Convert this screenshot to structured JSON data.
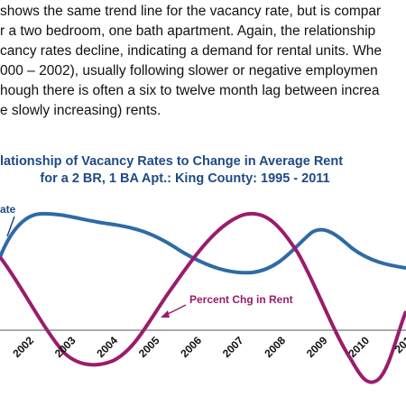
{
  "paragraph": {
    "lines": [
      "shows the same trend line for the vacancy rate, but is compar",
      "r a two bedroom, one bath apartment. Again, the relationship",
      "cancy rates decline, indicating a demand for rental units. Whe",
      "000 – 2002), usually following slower or negative  employmen",
      "hough there is often a six to twelve month lag between increa",
      "e slowly increasing) rents."
    ]
  },
  "figure": {
    "title_lines": [
      "lationship of Vacancy  Rates to Change in Average Rent",
      "for a 2 BR, 1 BA Apt.:  King County: 1995 - 2011"
    ],
    "x_labels": [
      "2002",
      "2003",
      "2004",
      "2005",
      "2006",
      "2007",
      "2008",
      "2009",
      "2010",
      "201"
    ],
    "series_labels": [
      "ate",
      "Percent Chg in Rent"
    ]
  }
}
